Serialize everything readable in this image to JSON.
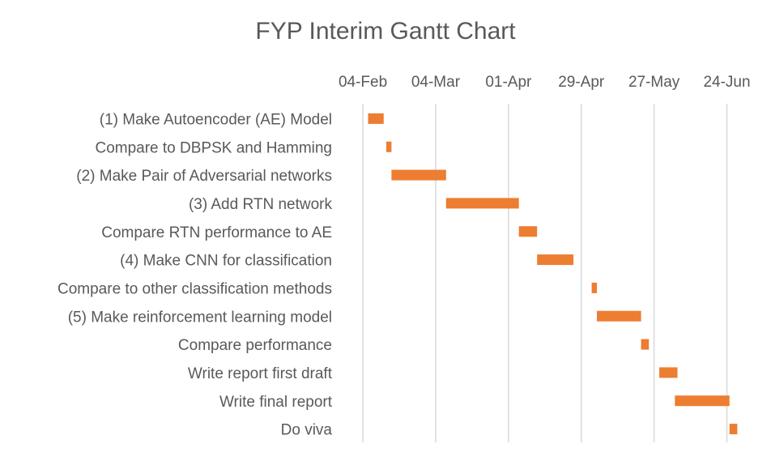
{
  "chart_data": {
    "type": "bar",
    "subtype": "gantt",
    "title": "FYP Interim Gantt Chart",
    "xlabel": "",
    "ylabel": "",
    "x_axis_position": "top",
    "x_ticks": [
      "04-Feb",
      "04-Mar",
      "01-Apr",
      "29-Apr",
      "27-May",
      "24-Jun"
    ],
    "xlim": [
      "2019-01-30",
      "2019-07-01"
    ],
    "grid": true,
    "legend": "none",
    "bar_color": "#ED7D31",
    "tasks": [
      {
        "label": "(1) Make Autoencoder (AE) Model",
        "start": "2019-02-06",
        "end": "2019-02-12"
      },
      {
        "label": "Compare to DBPSK and Hamming",
        "start": "2019-02-13",
        "end": "2019-02-15"
      },
      {
        "label": "(2) Make Pair of Adversarial networks",
        "start": "2019-02-15",
        "end": "2019-03-08"
      },
      {
        "label": "(3) Add RTN network",
        "start": "2019-03-08",
        "end": "2019-04-05"
      },
      {
        "label": "Compare RTN performance to AE",
        "start": "2019-04-05",
        "end": "2019-04-12"
      },
      {
        "label": "(4) Make CNN for classification",
        "start": "2019-04-12",
        "end": "2019-04-26"
      },
      {
        "label": "Compare to other classification methods",
        "start": "2019-05-03",
        "end": "2019-05-05"
      },
      {
        "label": "(5) Make reinforcement learning model",
        "start": "2019-05-05",
        "end": "2019-05-22"
      },
      {
        "label": "Compare performance ",
        "start": "2019-05-22",
        "end": "2019-05-25"
      },
      {
        "label": "Write report first draft",
        "start": "2019-05-29",
        "end": "2019-06-05"
      },
      {
        "label": "Write final report",
        "start": "2019-06-04",
        "end": "2019-06-25"
      },
      {
        "label": "Do viva",
        "start": "2019-06-25",
        "end": "2019-06-28"
      }
    ]
  }
}
